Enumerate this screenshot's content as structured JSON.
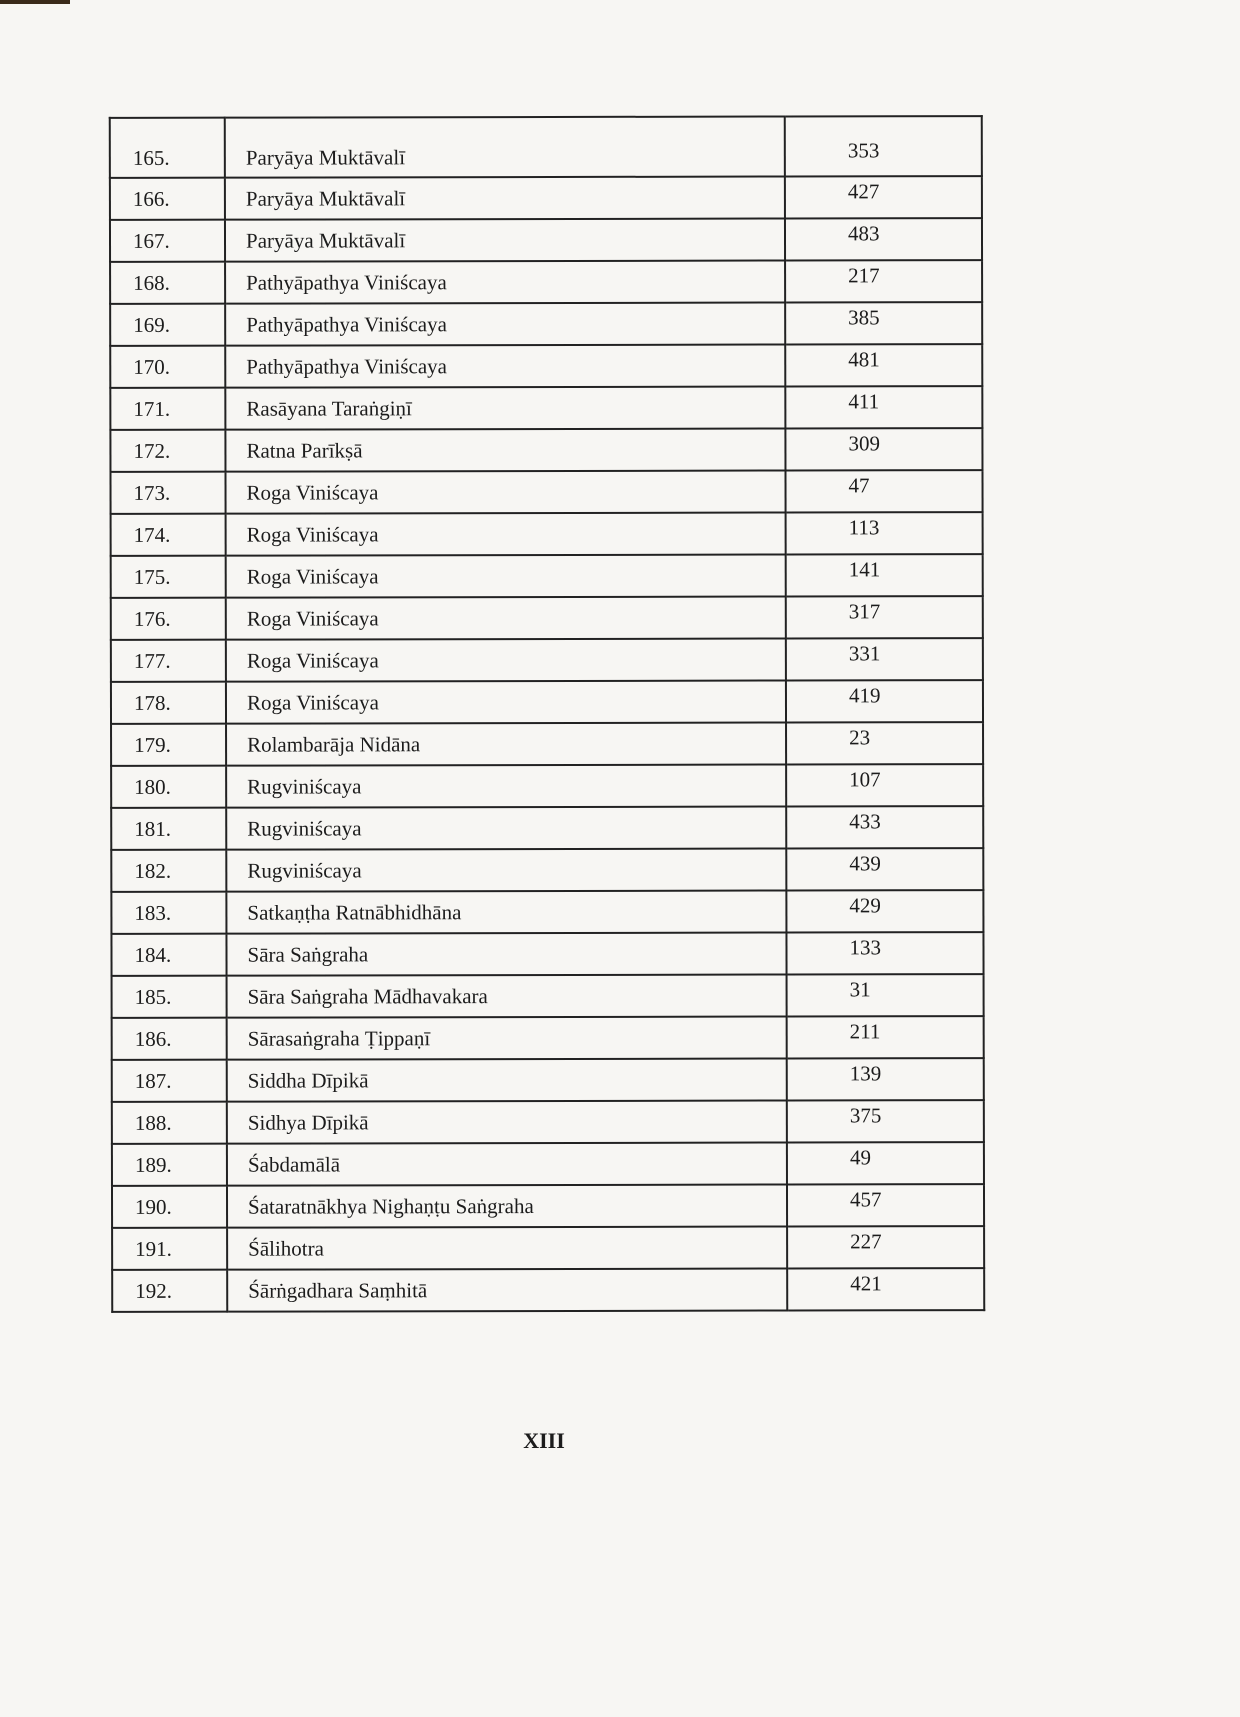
{
  "rows": [
    {
      "no": "165.",
      "title": "Paryāya Muktāvalī",
      "page": "353"
    },
    {
      "no": "166.",
      "title": "Paryāya Muktāvalī",
      "page": "427"
    },
    {
      "no": "167.",
      "title": "Paryāya Muktāvalī",
      "page": "483"
    },
    {
      "no": "168.",
      "title": "Pathyāpathya Viniścaya",
      "page": "217"
    },
    {
      "no": "169.",
      "title": "Pathyāpathya Viniścaya",
      "page": "385"
    },
    {
      "no": "170.",
      "title": "Pathyāpathya Viniścaya",
      "page": "481"
    },
    {
      "no": "171.",
      "title": "Rasāyana Taraṅgiṇī",
      "page": "411"
    },
    {
      "no": "172.",
      "title": "Ratna Parīkṣā",
      "page": "309"
    },
    {
      "no": "173.",
      "title": "Roga Viniścaya",
      "page": "47"
    },
    {
      "no": "174.",
      "title": "Roga Viniścaya",
      "page": "113"
    },
    {
      "no": "175.",
      "title": "Roga Viniścaya",
      "page": "141"
    },
    {
      "no": "176.",
      "title": "Roga Viniścaya",
      "page": "317"
    },
    {
      "no": "177.",
      "title": "Roga Viniścaya",
      "page": "331"
    },
    {
      "no": "178.",
      "title": "Roga Viniścaya",
      "page": "419"
    },
    {
      "no": "179.",
      "title": "Rolambarāja Nidāna",
      "page": "23"
    },
    {
      "no": "180.",
      "title": "Rugviniścaya",
      "page": "107"
    },
    {
      "no": "181.",
      "title": "Rugviniścaya",
      "page": "433"
    },
    {
      "no": "182.",
      "title": "Rugviniścaya",
      "page": "439"
    },
    {
      "no": "183.",
      "title": "Satkaṇṭha Ratnābhidhāna",
      "page": "429"
    },
    {
      "no": "184.",
      "title": "Sāra Saṅgraha",
      "page": "133"
    },
    {
      "no": "185.",
      "title": "Sāra Saṅgraha Mādhavakara",
      "page": "31"
    },
    {
      "no": "186.",
      "title": "Sārasaṅgraha Ṭippaṇī",
      "page": "211"
    },
    {
      "no": "187.",
      "title": "Siddha Dīpikā",
      "page": "139"
    },
    {
      "no": "188.",
      "title": "Sidhya Dīpikā",
      "page": "375"
    },
    {
      "no": "189.",
      "title": "Śabdamālā",
      "page": "49"
    },
    {
      "no": "190.",
      "title": "Śataratnākhya Nighaṇṭu Saṅgraha",
      "page": "457"
    },
    {
      "no": "191.",
      "title": "Śālihotra",
      "page": "227"
    },
    {
      "no": "192.",
      "title": "Śārṅgadhara Saṃhitā",
      "page": "421"
    }
  ],
  "page_number": "XIII"
}
